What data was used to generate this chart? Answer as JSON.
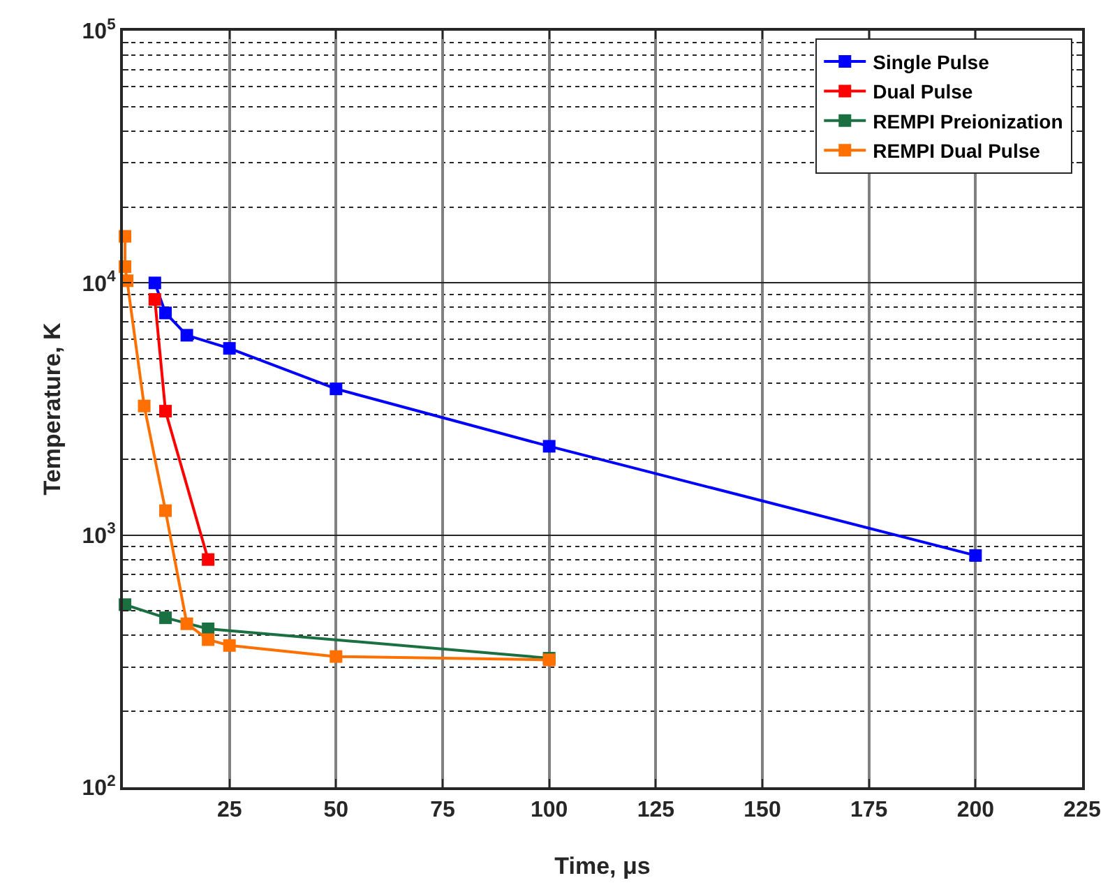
{
  "chart_data": {
    "type": "line",
    "xlabel": "Time, μs",
    "ylabel": "Temperature, K",
    "log": "y",
    "grid": true,
    "legend": "top right",
    "marker": "square",
    "line_style": "solid",
    "xlim": [
      0,
      225
    ],
    "xticks": [
      25,
      50,
      75,
      100,
      125,
      150,
      175,
      200,
      225
    ],
    "ylim": [
      100,
      100000
    ],
    "yticks": [
      {
        "value": 100,
        "label": "10$^{2}$"
      },
      {
        "value": 1000,
        "label": "10$^{3}$"
      },
      {
        "value": 10000,
        "label": "10$^{4}$"
      },
      {
        "value": 100000,
        "label": "10$^{5}$"
      }
    ],
    "series": [
      {
        "name": "Single Pulse",
        "color": "#0000ff",
        "x": [
          7.5,
          10,
          15,
          25,
          50,
          100,
          200
        ],
        "values": [
          10000,
          7600,
          6200,
          5500,
          3800,
          2250,
          830
        ]
      },
      {
        "name": "Dual Pulse",
        "color": "#ff0000",
        "x": [
          7.5,
          10,
          20
        ],
        "values": [
          8600,
          3100,
          800
        ]
      },
      {
        "name": "REMPI Preionization",
        "color": "#1a7040",
        "x": [
          0.5,
          10,
          20,
          100
        ],
        "values": [
          530,
          470,
          425,
          325
        ]
      },
      {
        "name": "REMPI Dual Pulse",
        "color": "#ff7000",
        "x": [
          0.5,
          0.5,
          1,
          5,
          10,
          15,
          20,
          25,
          50,
          100
        ],
        "values": [
          15300,
          11600,
          10200,
          3250,
          1250,
          445,
          385,
          365,
          330,
          320
        ]
      }
    ]
  }
}
